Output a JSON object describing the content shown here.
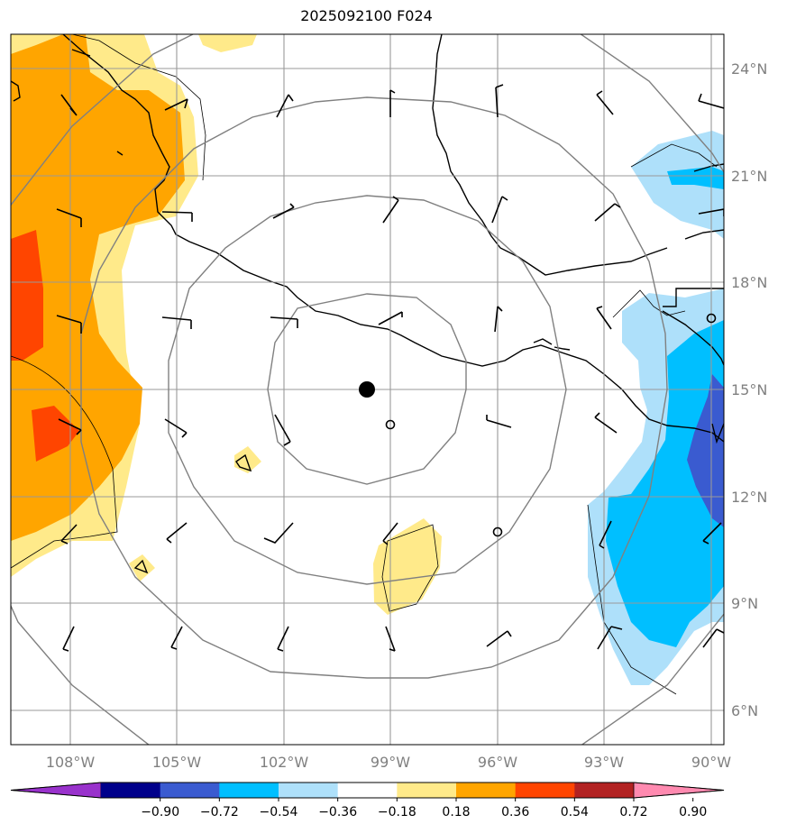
{
  "title": "2025092100 F024",
  "latitude_labels": [
    "24°N",
    "21°N",
    "18°N",
    "15°N",
    "12°N",
    "9°N",
    "6°N"
  ],
  "longitude_labels": [
    "108°W",
    "105°W",
    "102°W",
    "99°W",
    "96°W",
    "93°W",
    "90°W"
  ],
  "colorbar": {
    "labels": [
      "−0.90",
      "−0.72",
      "−0.54",
      "−0.36",
      "−0.18",
      "0.18",
      "0.36",
      "0.54",
      "0.72",
      "0.90"
    ],
    "colors": [
      "#9932cc",
      "#00008b",
      "#3a5bd0",
      "#00bfff",
      "#aee0fa",
      "#ffffff",
      "#ffea8a",
      "#ffa500",
      "#ff4500",
      "#b22222",
      "#ff8ab0"
    ]
  },
  "colors": {
    "grid": "#999999",
    "range_rings": "#808080",
    "coastline": "#000000",
    "center_marker": "#000000"
  },
  "legend": {
    "center_marker": "storm-center-dot",
    "ring_spacing": "range rings"
  }
}
